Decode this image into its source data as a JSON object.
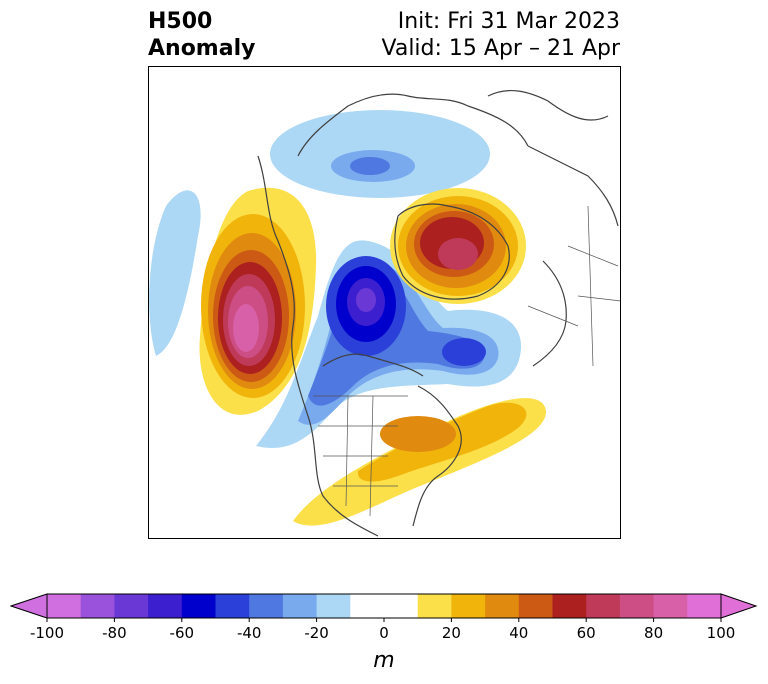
{
  "title": {
    "left_line1": "H500",
    "left_line2": "Anomaly",
    "right_line1": "Init: Fri 31 Mar 2023",
    "right_line2": "Valid: 15 Apr – 21 Apr"
  },
  "colorbar": {
    "unit": "m",
    "min": -100,
    "max": 100,
    "step": 10,
    "tick_labels": [
      "-100",
      "-80",
      "-60",
      "-40",
      "-20",
      "0",
      "20",
      "40",
      "60",
      "80",
      "100"
    ],
    "colors": [
      "#d070e0",
      "#9a52dc",
      "#6a38d4",
      "#3c1fcf",
      "#0000cd",
      "#2a40d8",
      "#4f78e0",
      "#7aaaee",
      "#acd8f6",
      "#ffffff",
      "#ffffff",
      "#fbe04a",
      "#f1b40b",
      "#e08a10",
      "#cc5a14",
      "#ac2020",
      "#be3a58",
      "#cc4e84",
      "#d860a8",
      "#e070d8"
    ]
  },
  "map": {
    "projection": "north-polar-stereographic",
    "anomalies": [
      {
        "name": "ridge-pacific-nw",
        "sign": "positive",
        "peak": 90
      },
      {
        "name": "ridge-north-atlantic",
        "sign": "positive",
        "peak": 70
      },
      {
        "name": "ridge-eastern-us",
        "sign": "positive",
        "peak": 40
      },
      {
        "name": "trough-arctic-canada",
        "sign": "negative",
        "peak": -80
      },
      {
        "name": "trough-scandinavia",
        "sign": "negative",
        "peak": -40
      },
      {
        "name": "trough-greenland-east",
        "sign": "negative",
        "peak": -50
      }
    ]
  }
}
